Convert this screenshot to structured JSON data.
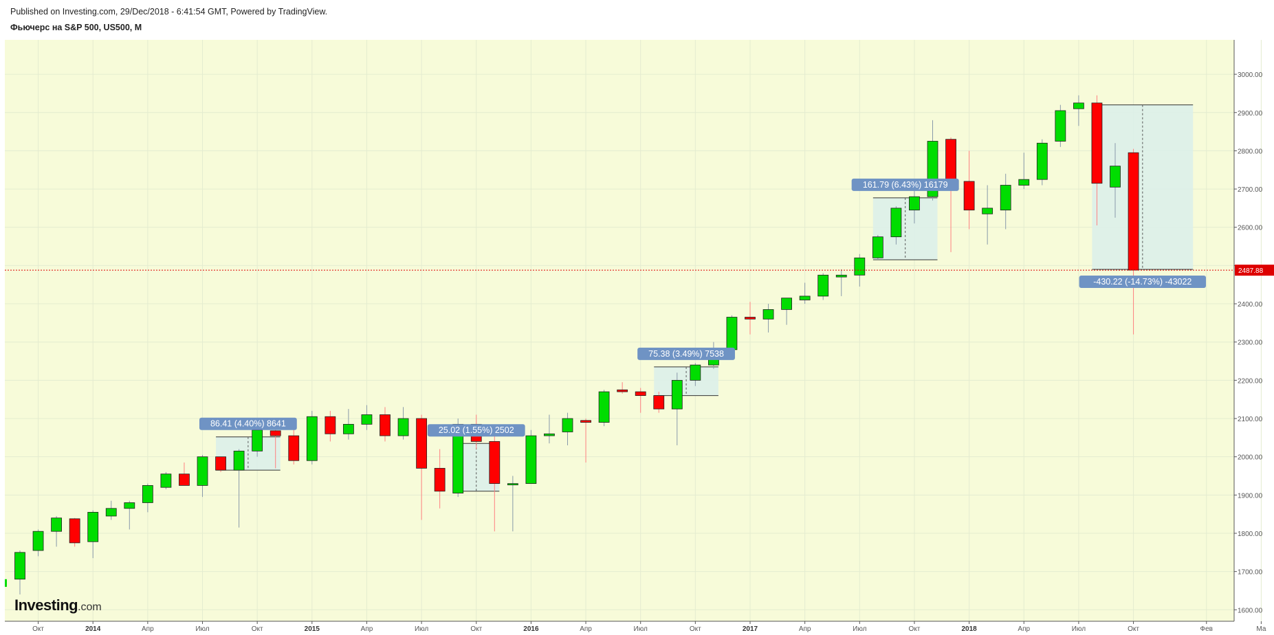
{
  "header": {
    "published": "Published on Investing.com, 29/Dec/2018 - 6:41:54 GMT, Powered by TradingView.",
    "symbol": "Фьючерс на S&P 500, US500, M"
  },
  "logo": {
    "name": "Investing",
    "suffix": ".com"
  },
  "colors": {
    "background": "#f7fbd9",
    "up": "#00dd00",
    "down": "#ff0000",
    "grid": "#e4ecd0",
    "annotation_bg": "#6f93c4",
    "range_fill": "#dcefe9",
    "last_price": "#dd0000"
  },
  "chart_data": {
    "type": "candlestick",
    "interval": "M",
    "ylim": [
      1570,
      3090
    ],
    "y_ticks": [
      1600,
      1700,
      1800,
      1900,
      2000,
      2100,
      2200,
      2300,
      2400,
      2500,
      2600,
      2700,
      2800,
      2900,
      3000
    ],
    "y_tick_labels": [
      "1600.00",
      "1700.00",
      "1800.00",
      "1900.00",
      "2000.00",
      "2100.00",
      "2200.00",
      "2300.00",
      "2400.00",
      "",
      "2600.00",
      "2700.00",
      "2800.00",
      "2900.00",
      "3000.00"
    ],
    "x_labels": [
      {
        "label": "Окт",
        "bold": false,
        "index": 1
      },
      {
        "label": "2014",
        "bold": true,
        "index": 4
      },
      {
        "label": "Апр",
        "bold": false,
        "index": 7
      },
      {
        "label": "Июл",
        "bold": false,
        "index": 10
      },
      {
        "label": "Окт",
        "bold": false,
        "index": 13
      },
      {
        "label": "2015",
        "bold": true,
        "index": 16
      },
      {
        "label": "Апр",
        "bold": false,
        "index": 19
      },
      {
        "label": "Июл",
        "bold": false,
        "index": 22
      },
      {
        "label": "Окт",
        "bold": false,
        "index": 25
      },
      {
        "label": "2016",
        "bold": true,
        "index": 28
      },
      {
        "label": "Апр",
        "bold": false,
        "index": 31
      },
      {
        "label": "Июл",
        "bold": false,
        "index": 34
      },
      {
        "label": "Окт",
        "bold": false,
        "index": 37
      },
      {
        "label": "2017",
        "bold": true,
        "index": 40
      },
      {
        "label": "Апр",
        "bold": false,
        "index": 43
      },
      {
        "label": "Июл",
        "bold": false,
        "index": 46
      },
      {
        "label": "Окт",
        "bold": false,
        "index": 49
      },
      {
        "label": "2018",
        "bold": true,
        "index": 52
      },
      {
        "label": "Апр",
        "bold": false,
        "index": 55
      },
      {
        "label": "Июл",
        "bold": false,
        "index": 58
      },
      {
        "label": "Окт",
        "bold": false,
        "index": 61
      },
      {
        "label": "Фев",
        "bold": false,
        "index": 65
      },
      {
        "label": "Ма",
        "bold": false,
        "index": 68
      }
    ],
    "candles": [
      {
        "o": 1680,
        "h": 1755,
        "l": 1640,
        "c": 1750
      },
      {
        "o": 1755,
        "h": 1810,
        "l": 1740,
        "c": 1805
      },
      {
        "o": 1805,
        "h": 1845,
        "l": 1765,
        "c": 1840
      },
      {
        "o": 1838,
        "h": 1840,
        "l": 1765,
        "c": 1775
      },
      {
        "o": 1778,
        "h": 1860,
        "l": 1735,
        "c": 1855
      },
      {
        "o": 1845,
        "h": 1885,
        "l": 1835,
        "c": 1865
      },
      {
        "o": 1865,
        "h": 1885,
        "l": 1810,
        "c": 1880
      },
      {
        "o": 1880,
        "h": 1930,
        "l": 1855,
        "c": 1925
      },
      {
        "o": 1920,
        "h": 1960,
        "l": 1915,
        "c": 1955
      },
      {
        "o": 1955,
        "h": 1985,
        "l": 1925,
        "c": 1925
      },
      {
        "o": 1925,
        "h": 2005,
        "l": 1895,
        "c": 2000
      },
      {
        "o": 2000,
        "h": 2000,
        "l": 1960,
        "c": 1965
      },
      {
        "o": 1965,
        "h": 2020,
        "l": 1815,
        "c": 2015
      },
      {
        "o": 2015,
        "h": 2075,
        "l": 2000,
        "c": 2070
      },
      {
        "o": 2068,
        "h": 2085,
        "l": 1970,
        "c": 2055
      },
      {
        "o": 2055,
        "h": 2075,
        "l": 1980,
        "c": 1990
      },
      {
        "o": 1990,
        "h": 2120,
        "l": 1980,
        "c": 2105
      },
      {
        "o": 2105,
        "h": 2120,
        "l": 2040,
        "c": 2060
      },
      {
        "o": 2060,
        "h": 2125,
        "l": 2045,
        "c": 2085
      },
      {
        "o": 2085,
        "h": 2135,
        "l": 2070,
        "c": 2110
      },
      {
        "o": 2110,
        "h": 2130,
        "l": 2040,
        "c": 2055
      },
      {
        "o": 2055,
        "h": 2130,
        "l": 2045,
        "c": 2100
      },
      {
        "o": 2100,
        "h": 2110,
        "l": 1835,
        "c": 1970
      },
      {
        "o": 1970,
        "h": 2020,
        "l": 1865,
        "c": 1910
      },
      {
        "o": 1905,
        "h": 2100,
        "l": 1895,
        "c": 2085
      },
      {
        "o": 2085,
        "h": 2110,
        "l": 2020,
        "c": 2040
      },
      {
        "o": 2040,
        "h": 2080,
        "l": 1805,
        "c": 1930
      },
      {
        "o": 1930,
        "h": 1950,
        "l": 1805,
        "c": 1930
      },
      {
        "o": 1930,
        "h": 2070,
        "l": 1930,
        "c": 2055
      },
      {
        "o": 2055,
        "h": 2110,
        "l": 2035,
        "c": 2060
      },
      {
        "o": 2065,
        "h": 2115,
        "l": 2030,
        "c": 2100
      },
      {
        "o": 2095,
        "h": 2100,
        "l": 1985,
        "c": 2090
      },
      {
        "o": 2090,
        "h": 2175,
        "l": 2080,
        "c": 2170
      },
      {
        "o": 2175,
        "h": 2195,
        "l": 2165,
        "c": 2170
      },
      {
        "o": 2170,
        "h": 2180,
        "l": 2115,
        "c": 2160
      },
      {
        "o": 2160,
        "h": 2170,
        "l": 2115,
        "c": 2125
      },
      {
        "o": 2125,
        "h": 2220,
        "l": 2030,
        "c": 2200
      },
      {
        "o": 2200,
        "h": 2245,
        "l": 2185,
        "c": 2240
      },
      {
        "o": 2240,
        "h": 2300,
        "l": 2230,
        "c": 2275
      },
      {
        "o": 2280,
        "h": 2370,
        "l": 2260,
        "c": 2365
      },
      {
        "o": 2365,
        "h": 2405,
        "l": 2320,
        "c": 2360
      },
      {
        "o": 2360,
        "h": 2400,
        "l": 2325,
        "c": 2385
      },
      {
        "o": 2385,
        "h": 2415,
        "l": 2345,
        "c": 2415
      },
      {
        "o": 2410,
        "h": 2455,
        "l": 2400,
        "c": 2420
      },
      {
        "o": 2420,
        "h": 2480,
        "l": 2410,
        "c": 2475
      },
      {
        "o": 2470,
        "h": 2490,
        "l": 2420,
        "c": 2475
      },
      {
        "o": 2475,
        "h": 2530,
        "l": 2445,
        "c": 2520
      },
      {
        "o": 2520,
        "h": 2580,
        "l": 2515,
        "c": 2575
      },
      {
        "o": 2575,
        "h": 2655,
        "l": 2555,
        "c": 2650
      },
      {
        "o": 2645,
        "h": 2695,
        "l": 2610,
        "c": 2680
      },
      {
        "o": 2680,
        "h": 2880,
        "l": 2670,
        "c": 2825
      },
      {
        "o": 2830,
        "h": 2835,
        "l": 2535,
        "c": 2715
      },
      {
        "o": 2720,
        "h": 2800,
        "l": 2595,
        "c": 2645
      },
      {
        "o": 2635,
        "h": 2710,
        "l": 2555,
        "c": 2650
      },
      {
        "o": 2645,
        "h": 2740,
        "l": 2595,
        "c": 2710
      },
      {
        "o": 2710,
        "h": 2795,
        "l": 2700,
        "c": 2725
      },
      {
        "o": 2725,
        "h": 2830,
        "l": 2710,
        "c": 2820
      },
      {
        "o": 2825,
        "h": 2920,
        "l": 2810,
        "c": 2905
      },
      {
        "o": 2910,
        "h": 2945,
        "l": 2865,
        "c": 2925
      },
      {
        "o": 2925,
        "h": 2945,
        "l": 2605,
        "c": 2715
      },
      {
        "o": 2705,
        "h": 2820,
        "l": 2625,
        "c": 2760
      },
      {
        "o": 2795,
        "h": 2805,
        "l": 2320,
        "c": 2488
      }
    ],
    "measurements": [
      {
        "from": 0,
        "to": 0,
        "label": "86.41 (4.40%) 8641",
        "start_index": 11,
        "end_index": 14,
        "low": 1965,
        "high": 2052
      },
      {
        "from": 0,
        "to": 0,
        "label": "25.02 (1.55%) 2502",
        "start_index": 24,
        "end_index": 26,
        "low": 1910,
        "high": 2035
      },
      {
        "from": 0,
        "to": 0,
        "label": "75.38 (3.49%) 7538",
        "start_index": 35,
        "end_index": 38,
        "low": 2160,
        "high": 2235
      },
      {
        "from": 0,
        "to": 0,
        "label": "161.79 (6.43%) 16179",
        "start_index": 47,
        "end_index": 50,
        "low": 2515,
        "high": 2677
      },
      {
        "from": 0,
        "to": 0,
        "label": "-430.22 (-14.73%) -43022",
        "start_index": 59,
        "end_index": 64,
        "low": 2490,
        "high": 2920,
        "below": true
      }
    ],
    "last_price": 2487.88,
    "last_price_label": "2487.88"
  }
}
